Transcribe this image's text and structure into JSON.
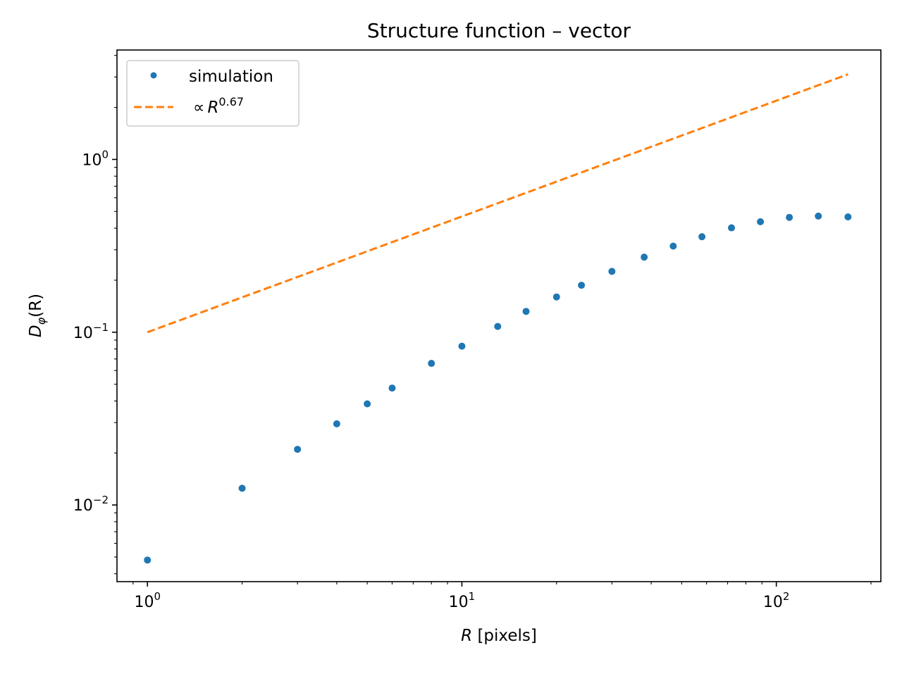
{
  "chart_data": {
    "type": "scatter",
    "title": "Structure function – vector",
    "xlabel": {
      "italic": "R",
      "rest": " [pixels]"
    },
    "ylabel": {
      "main": "D",
      "sub": "φ",
      "rest": "(R)"
    },
    "xscale": "log",
    "yscale": "log",
    "xlim": [
      0.8,
      215
    ],
    "ylim": [
      0.0036,
      4.3
    ],
    "grid": false,
    "legend_position": "top-left",
    "colors": {
      "simulation": "#1f77b4",
      "fit": "#ff7f0e"
    },
    "x_ticks": [
      {
        "value": 1,
        "base": "10",
        "exp": "0"
      },
      {
        "value": 10,
        "base": "10",
        "exp": "1"
      },
      {
        "value": 100,
        "base": "10",
        "exp": "2"
      }
    ],
    "y_ticks": [
      {
        "value": 0.01,
        "base": "10",
        "exp": "−2"
      },
      {
        "value": 0.1,
        "base": "10",
        "exp": "−1"
      },
      {
        "value": 1,
        "base": "10",
        "exp": "0"
      }
    ],
    "series": [
      {
        "name": "simulation",
        "style": "markers",
        "x": [
          1,
          2,
          3,
          4,
          5,
          6,
          8,
          10,
          13,
          16,
          20,
          24,
          30,
          38,
          47,
          58,
          72,
          89,
          110,
          136,
          169
        ],
        "y": [
          0.0048,
          0.0125,
          0.021,
          0.0295,
          0.0385,
          0.0475,
          0.066,
          0.083,
          0.108,
          0.132,
          0.16,
          0.187,
          0.225,
          0.272,
          0.315,
          0.357,
          0.402,
          0.436,
          0.462,
          0.47,
          0.465
        ]
      },
      {
        "name_prefix": "∝",
        "name_italic": "R",
        "name_exp": "0.67",
        "style": "dashed-line",
        "exponent": 0.67,
        "amplitude": 0.1,
        "x": [
          1,
          169
        ]
      }
    ]
  }
}
